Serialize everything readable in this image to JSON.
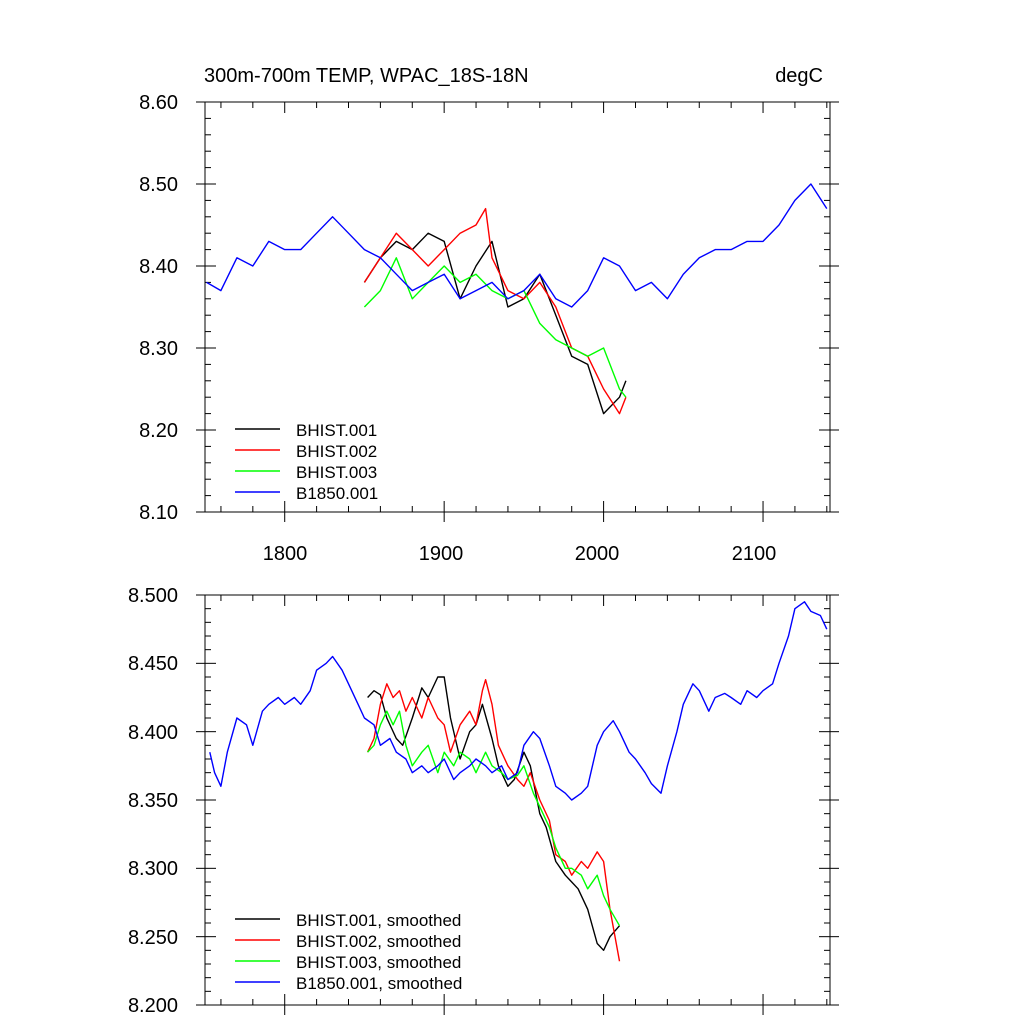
{
  "chart_data": [
    {
      "type": "line",
      "title": "300m-700m TEMP, WPAC_18S-18N",
      "units": "degC",
      "xlabel": "",
      "ylabel": "",
      "xlim": [
        1750,
        2142
      ],
      "ylim": [
        8.1,
        8.6
      ],
      "xticks": [
        1800,
        1900,
        2000,
        2100
      ],
      "xtick_labels": [
        "1800",
        "1900",
        "2000",
        "2100"
      ],
      "yticks": [
        8.1,
        8.2,
        8.3,
        8.4,
        8.5,
        8.6
      ],
      "ytick_labels": [
        "8.10",
        "8.20",
        "8.30",
        "8.40",
        "8.50",
        "8.60"
      ],
      "legend_position": "bottom-left",
      "series": [
        {
          "name": "BHIST.001",
          "color": "#000000",
          "x": [
            1850,
            1860,
            1870,
            1880,
            1890,
            1900,
            1910,
            1920,
            1930,
            1940,
            1950,
            1960,
            1970,
            1980,
            1990,
            2000,
            2010,
            2014
          ],
          "y": [
            8.38,
            8.41,
            8.43,
            8.42,
            8.44,
            8.43,
            8.36,
            8.4,
            8.43,
            8.35,
            8.36,
            8.39,
            8.34,
            8.29,
            8.28,
            8.22,
            8.24,
            8.26
          ]
        },
        {
          "name": "BHIST.002",
          "color": "#ff0000",
          "x": [
            1850,
            1860,
            1870,
            1880,
            1890,
            1900,
            1910,
            1920,
            1926,
            1930,
            1940,
            1950,
            1960,
            1970,
            1980,
            1990,
            2000,
            2010,
            2014
          ],
          "y": [
            8.38,
            8.41,
            8.44,
            8.42,
            8.4,
            8.42,
            8.44,
            8.45,
            8.47,
            8.41,
            8.37,
            8.36,
            8.38,
            8.35,
            8.3,
            8.29,
            8.25,
            8.22,
            8.24
          ]
        },
        {
          "name": "BHIST.003",
          "color": "#00ff00",
          "x": [
            1850,
            1860,
            1870,
            1880,
            1890,
            1900,
            1910,
            1920,
            1930,
            1940,
            1950,
            1960,
            1970,
            1980,
            1990,
            2000,
            2010,
            2014
          ],
          "y": [
            8.35,
            8.37,
            8.41,
            8.36,
            8.38,
            8.4,
            8.38,
            8.39,
            8.37,
            8.36,
            8.37,
            8.33,
            8.31,
            8.3,
            8.29,
            8.3,
            8.25,
            8.24
          ]
        },
        {
          "name": "B1850.001",
          "color": "#0000ff",
          "x": [
            1751,
            1760,
            1770,
            1780,
            1790,
            1800,
            1810,
            1820,
            1830,
            1840,
            1850,
            1860,
            1870,
            1880,
            1890,
            1900,
            1910,
            1920,
            1930,
            1940,
            1950,
            1960,
            1970,
            1980,
            1990,
            2000,
            2010,
            2020,
            2030,
            2040,
            2050,
            2060,
            2070,
            2080,
            2090,
            2100,
            2110,
            2120,
            2130,
            2140
          ],
          "y": [
            8.38,
            8.37,
            8.41,
            8.4,
            8.43,
            8.42,
            8.42,
            8.44,
            8.46,
            8.44,
            8.42,
            8.41,
            8.39,
            8.37,
            8.38,
            8.39,
            8.36,
            8.37,
            8.38,
            8.36,
            8.37,
            8.39,
            8.36,
            8.35,
            8.37,
            8.41,
            8.4,
            8.37,
            8.38,
            8.36,
            8.39,
            8.41,
            8.42,
            8.42,
            8.43,
            8.43,
            8.45,
            8.48,
            8.5,
            8.47
          ]
        }
      ]
    },
    {
      "type": "line",
      "title": "",
      "xlabel": "",
      "ylabel": "",
      "xlim": [
        1750,
        2142
      ],
      "ylim": [
        8.2,
        8.5
      ],
      "xticks": [
        1800,
        1900,
        2000,
        2100
      ],
      "yticks": [
        8.2,
        8.25,
        8.3,
        8.35,
        8.4,
        8.45,
        8.5
      ],
      "ytick_labels": [
        "8.200",
        "8.250",
        "8.300",
        "8.350",
        "8.400",
        "8.450",
        "8.500"
      ],
      "legend_position": "bottom-left",
      "series": [
        {
          "name": "BHIST.001, smoothed",
          "color": "#000000",
          "x": [
            1852,
            1856,
            1860,
            1864,
            1870,
            1874,
            1880,
            1886,
            1890,
            1896,
            1900,
            1904,
            1910,
            1916,
            1920,
            1924,
            1930,
            1934,
            1940,
            1944,
            1950,
            1954,
            1960,
            1964,
            1970,
            1976,
            1980,
            1984,
            1990,
            1996,
            2000,
            2004,
            2010
          ],
          "y": [
            8.425,
            8.43,
            8.427,
            8.41,
            8.395,
            8.39,
            8.41,
            8.432,
            8.425,
            8.44,
            8.44,
            8.41,
            8.38,
            8.4,
            8.405,
            8.42,
            8.395,
            8.375,
            8.36,
            8.365,
            8.385,
            8.375,
            8.34,
            8.33,
            8.305,
            8.295,
            8.29,
            8.285,
            8.27,
            8.245,
            8.24,
            8.25,
            8.258
          ]
        },
        {
          "name": "BHIST.002, smoothed",
          "color": "#ff0000",
          "x": [
            1852,
            1856,
            1860,
            1864,
            1868,
            1872,
            1876,
            1880,
            1886,
            1890,
            1896,
            1900,
            1904,
            1910,
            1916,
            1920,
            1924,
            1926,
            1930,
            1934,
            1940,
            1946,
            1950,
            1954,
            1960,
            1966,
            1970,
            1976,
            1980,
            1986,
            1990,
            1996,
            2000,
            2004,
            2010
          ],
          "y": [
            8.385,
            8.395,
            8.42,
            8.435,
            8.425,
            8.43,
            8.415,
            8.425,
            8.41,
            8.425,
            8.41,
            8.405,
            8.385,
            8.405,
            8.415,
            8.405,
            8.43,
            8.438,
            8.42,
            8.39,
            8.375,
            8.365,
            8.36,
            8.37,
            8.35,
            8.335,
            8.31,
            8.305,
            8.295,
            8.305,
            8.3,
            8.312,
            8.305,
            8.27,
            8.232
          ]
        },
        {
          "name": "BHIST.003, smoothed",
          "color": "#00ff00",
          "x": [
            1852,
            1856,
            1860,
            1864,
            1868,
            1872,
            1876,
            1880,
            1886,
            1890,
            1896,
            1900,
            1906,
            1910,
            1916,
            1920,
            1926,
            1930,
            1936,
            1940,
            1946,
            1950,
            1956,
            1960,
            1966,
            1970,
            1976,
            1980,
            1986,
            1990,
            1996,
            2000,
            2004,
            2010
          ],
          "y": [
            8.385,
            8.39,
            8.405,
            8.415,
            8.405,
            8.415,
            8.39,
            8.375,
            8.385,
            8.39,
            8.37,
            8.385,
            8.375,
            8.385,
            8.38,
            8.37,
            8.385,
            8.375,
            8.37,
            8.365,
            8.368,
            8.375,
            8.355,
            8.345,
            8.33,
            8.315,
            8.3,
            8.3,
            8.295,
            8.285,
            8.295,
            8.28,
            8.27,
            8.258
          ]
        },
        {
          "name": "B1850.001, smoothed",
          "color": "#0000ff",
          "x": [
            1753,
            1756,
            1760,
            1764,
            1770,
            1776,
            1780,
            1786,
            1790,
            1796,
            1800,
            1806,
            1810,
            1816,
            1820,
            1826,
            1830,
            1836,
            1840,
            1846,
            1850,
            1856,
            1860,
            1866,
            1870,
            1876,
            1880,
            1886,
            1890,
            1896,
            1900,
            1906,
            1910,
            1916,
            1920,
            1926,
            1930,
            1936,
            1940,
            1946,
            1950,
            1956,
            1960,
            1966,
            1970,
            1976,
            1980,
            1986,
            1990,
            1996,
            2000,
            2006,
            2010,
            2016,
            2020,
            2026,
            2030,
            2036,
            2040,
            2046,
            2050,
            2056,
            2060,
            2066,
            2070,
            2076,
            2080,
            2086,
            2090,
            2096,
            2100,
            2106,
            2110,
            2116,
            2120,
            2126,
            2130,
            2136,
            2140
          ],
          "y": [
            8.385,
            8.37,
            8.36,
            8.385,
            8.41,
            8.405,
            8.39,
            8.415,
            8.42,
            8.425,
            8.42,
            8.425,
            8.42,
            8.43,
            8.445,
            8.45,
            8.455,
            8.445,
            8.435,
            8.42,
            8.41,
            8.405,
            8.39,
            8.395,
            8.385,
            8.38,
            8.37,
            8.375,
            8.37,
            8.375,
            8.38,
            8.365,
            8.37,
            8.375,
            8.38,
            8.375,
            8.37,
            8.375,
            8.365,
            8.37,
            8.39,
            8.4,
            8.395,
            8.375,
            8.36,
            8.355,
            8.35,
            8.355,
            8.36,
            8.39,
            8.4,
            8.408,
            8.4,
            8.385,
            8.38,
            8.37,
            8.362,
            8.355,
            8.375,
            8.4,
            8.42,
            8.435,
            8.43,
            8.415,
            8.425,
            8.428,
            8.425,
            8.42,
            8.43,
            8.425,
            8.43,
            8.435,
            8.45,
            8.47,
            8.49,
            8.495,
            8.488,
            8.485,
            8.475
          ]
        }
      ]
    }
  ]
}
